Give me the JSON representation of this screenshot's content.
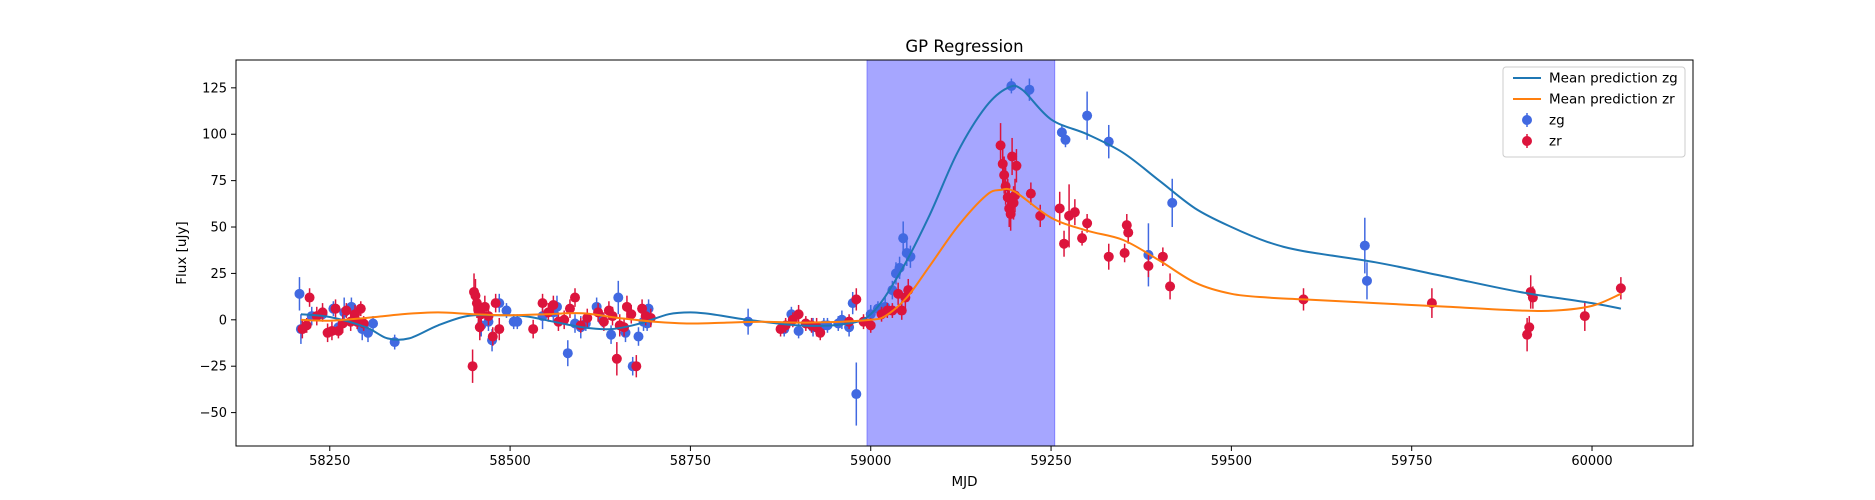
{
  "chart_data": {
    "type": "scatter",
    "title": "GP Regression",
    "xlabel": "MJD",
    "ylabel": "Flux [uJy]",
    "xlim": [
      58120,
      60140
    ],
    "ylim": [
      -68,
      140
    ],
    "xticks": [
      58250,
      58500,
      58750,
      59000,
      59250,
      59500,
      59750,
      60000
    ],
    "yticks": [
      -50,
      -25,
      0,
      25,
      50,
      75,
      100,
      125
    ],
    "grid": false,
    "legend": "top-right",
    "shaded_region": {
      "x0": 58995,
      "x1": 59255,
      "color": "#a6a6ff"
    },
    "series": [
      {
        "name": "Mean prediction zg",
        "kind": "line",
        "color": "#1f77b4",
        "points": [
          [
            58210,
            3
          ],
          [
            58250,
            1.5
          ],
          [
            58300,
            -4
          ],
          [
            58330,
            -10
          ],
          [
            58360,
            -10
          ],
          [
            58400,
            -3
          ],
          [
            58440,
            2
          ],
          [
            58480,
            2.5
          ],
          [
            58520,
            2
          ],
          [
            58560,
            -1
          ],
          [
            58600,
            -4
          ],
          [
            58640,
            -5
          ],
          [
            58680,
            -2
          ],
          [
            58720,
            3
          ],
          [
            58750,
            4
          ],
          [
            58780,
            3
          ],
          [
            58830,
            0
          ],
          [
            58900,
            -3
          ],
          [
            58960,
            -2.5
          ],
          [
            59000,
            3
          ],
          [
            59040,
            25
          ],
          [
            59080,
            55
          ],
          [
            59120,
            90
          ],
          [
            59160,
            115
          ],
          [
            59190,
            125
          ],
          [
            59210,
            124
          ],
          [
            59250,
            108
          ],
          [
            59300,
            100
          ],
          [
            59350,
            90
          ],
          [
            59400,
            75
          ],
          [
            59450,
            60
          ],
          [
            59500,
            50
          ],
          [
            59550,
            42
          ],
          [
            59600,
            37
          ],
          [
            59700,
            31
          ],
          [
            59800,
            23
          ],
          [
            59900,
            15
          ],
          [
            60000,
            9
          ],
          [
            60040,
            6
          ]
        ]
      },
      {
        "name": "Mean prediction zr",
        "kind": "line",
        "color": "#ff7f0e",
        "points": [
          [
            58210,
            0
          ],
          [
            58250,
            -0.5
          ],
          [
            58300,
            1
          ],
          [
            58350,
            3
          ],
          [
            58400,
            4
          ],
          [
            58450,
            3
          ],
          [
            58500,
            2.5
          ],
          [
            58550,
            3
          ],
          [
            58600,
            3.5
          ],
          [
            58650,
            1
          ],
          [
            58700,
            -1
          ],
          [
            58750,
            -2
          ],
          [
            58800,
            -1.5
          ],
          [
            58850,
            -1
          ],
          [
            58900,
            -1.5
          ],
          [
            58960,
            -1
          ],
          [
            59000,
            0
          ],
          [
            59020,
            2
          ],
          [
            59050,
            12
          ],
          [
            59080,
            28
          ],
          [
            59120,
            50
          ],
          [
            59160,
            67
          ],
          [
            59180,
            70
          ],
          [
            59200,
            69
          ],
          [
            59250,
            55
          ],
          [
            59300,
            48
          ],
          [
            59350,
            43
          ],
          [
            59400,
            32
          ],
          [
            59450,
            20
          ],
          [
            59500,
            14
          ],
          [
            59550,
            12
          ],
          [
            59600,
            11
          ],
          [
            59700,
            9
          ],
          [
            59800,
            7
          ],
          [
            59900,
            5
          ],
          [
            59950,
            5
          ],
          [
            60000,
            7.5
          ],
          [
            60040,
            14
          ]
        ]
      },
      {
        "name": "zg",
        "kind": "errorbar",
        "color": "#4169e1",
        "points": [
          [
            58208,
            14,
            9
          ],
          [
            58210,
            -5,
            8
          ],
          [
            58225,
            2,
            5
          ],
          [
            58240,
            3,
            4
          ],
          [
            58255,
            6,
            4
          ],
          [
            58262,
            -4,
            5
          ],
          [
            58270,
            4,
            8
          ],
          [
            58280,
            7,
            5
          ],
          [
            58288,
            -1,
            4
          ],
          [
            58295,
            -5,
            6
          ],
          [
            58303,
            -7,
            5
          ],
          [
            58310,
            -2,
            4
          ],
          [
            58340,
            -12,
            4
          ],
          [
            58460,
            -3,
            6
          ],
          [
            58470,
            -1,
            5
          ],
          [
            58475,
            -11,
            6
          ],
          [
            58485,
            9,
            5
          ],
          [
            58495,
            5,
            4
          ],
          [
            58505,
            -1,
            4
          ],
          [
            58510,
            -1,
            4
          ],
          [
            58545,
            2,
            7
          ],
          [
            58560,
            4,
            5
          ],
          [
            58565,
            7,
            6
          ],
          [
            58580,
            -18,
            7
          ],
          [
            58590,
            -2,
            5
          ],
          [
            58598,
            -4,
            6
          ],
          [
            58605,
            -2,
            4
          ],
          [
            58620,
            7,
            5
          ],
          [
            58628,
            0,
            4
          ],
          [
            58640,
            -8,
            5
          ],
          [
            58650,
            12,
            9
          ],
          [
            58660,
            -7,
            5
          ],
          [
            58670,
            -25,
            5
          ],
          [
            58678,
            -9,
            5
          ],
          [
            58685,
            -1,
            5
          ],
          [
            58690,
            -2,
            4
          ],
          [
            58692,
            6,
            5
          ],
          [
            58830,
            -1,
            7
          ],
          [
            58880,
            -5,
            4
          ],
          [
            58890,
            3,
            4
          ],
          [
            58900,
            -6,
            4
          ],
          [
            58920,
            -4,
            5
          ],
          [
            58935,
            -3,
            4
          ],
          [
            58940,
            -3,
            4
          ],
          [
            58955,
            -2,
            4
          ],
          [
            58960,
            0,
            5
          ],
          [
            58970,
            -4,
            5
          ],
          [
            58975,
            9,
            6
          ],
          [
            58980,
            -40,
            17
          ],
          [
            59000,
            3,
            5
          ],
          [
            59010,
            6,
            4
          ],
          [
            59020,
            7,
            5
          ],
          [
            59030,
            16,
            5
          ],
          [
            59035,
            25,
            6
          ],
          [
            59040,
            28,
            6
          ],
          [
            59045,
            44,
            9
          ],
          [
            59050,
            36,
            7
          ],
          [
            59055,
            34,
            6
          ],
          [
            59195,
            126,
            4
          ],
          [
            59220,
            124,
            6
          ],
          [
            59265,
            101,
            4
          ],
          [
            59270,
            97,
            4
          ],
          [
            59300,
            110,
            13
          ],
          [
            59330,
            96,
            9
          ],
          [
            59385,
            35,
            17
          ],
          [
            59418,
            63,
            13
          ],
          [
            59685,
            40,
            15
          ],
          [
            59688,
            21,
            10
          ]
        ]
      },
      {
        "name": "zr",
        "kind": "errorbar",
        "color": "#dc143c",
        "points": [
          [
            58212,
            -5,
            5
          ],
          [
            58218,
            -3,
            4
          ],
          [
            58222,
            12,
            5
          ],
          [
            58232,
            2,
            5
          ],
          [
            58240,
            4,
            5
          ],
          [
            58247,
            -7,
            5
          ],
          [
            58253,
            -6,
            5
          ],
          [
            58258,
            6,
            5
          ],
          [
            58262,
            -6,
            4
          ],
          [
            58268,
            -2,
            5
          ],
          [
            58273,
            5,
            4
          ],
          [
            58279,
            -1,
            5
          ],
          [
            58285,
            3,
            5
          ],
          [
            58288,
            -1,
            4
          ],
          [
            58293,
            6,
            4
          ],
          [
            58297,
            -2,
            4
          ],
          [
            58448,
            -25,
            9
          ],
          [
            58450,
            15,
            10
          ],
          [
            58452,
            13,
            9
          ],
          [
            58454,
            9,
            8
          ],
          [
            58456,
            5,
            7
          ],
          [
            58458,
            -4,
            7
          ],
          [
            58460,
            3,
            6
          ],
          [
            58465,
            7,
            6
          ],
          [
            58470,
            2,
            5
          ],
          [
            58476,
            -9,
            5
          ],
          [
            58480,
            9,
            5
          ],
          [
            58485,
            -5,
            6
          ],
          [
            58532,
            -5,
            5
          ],
          [
            58545,
            9,
            5
          ],
          [
            58553,
            4,
            5
          ],
          [
            58560,
            8,
            5
          ],
          [
            58567,
            -1,
            5
          ],
          [
            58575,
            0,
            5
          ],
          [
            58583,
            6,
            5
          ],
          [
            58590,
            12,
            5
          ],
          [
            58598,
            -3,
            4
          ],
          [
            58607,
            1,
            5
          ],
          [
            58622,
            4,
            5
          ],
          [
            58630,
            -1,
            5
          ],
          [
            58637,
            5,
            5
          ],
          [
            58642,
            2,
            5
          ],
          [
            58648,
            -21,
            9
          ],
          [
            58652,
            -3,
            6
          ],
          [
            58658,
            -4,
            5
          ],
          [
            58662,
            7,
            6
          ],
          [
            58668,
            3,
            5
          ],
          [
            58675,
            -25,
            6
          ],
          [
            58683,
            6,
            5
          ],
          [
            58688,
            2,
            5
          ],
          [
            58695,
            1,
            5
          ],
          [
            58875,
            -5,
            4
          ],
          [
            58882,
            -3,
            4
          ],
          [
            58892,
            0,
            4
          ],
          [
            58900,
            3,
            5
          ],
          [
            58910,
            -2,
            4
          ],
          [
            58918,
            -3,
            4
          ],
          [
            58925,
            -4,
            5
          ],
          [
            58930,
            -7,
            4
          ],
          [
            58970,
            -1,
            4
          ],
          [
            58980,
            11,
            6
          ],
          [
            58990,
            -1,
            4
          ],
          [
            59000,
            -3,
            4
          ],
          [
            59015,
            3,
            4
          ],
          [
            59023,
            5,
            4
          ],
          [
            59030,
            5,
            4
          ],
          [
            59038,
            14,
            6
          ],
          [
            59043,
            5,
            5
          ],
          [
            59048,
            12,
            6
          ],
          [
            59052,
            16,
            6
          ],
          [
            59180,
            94,
            12
          ],
          [
            59183,
            84,
            11
          ],
          [
            59185,
            78,
            10
          ],
          [
            59187,
            72,
            10
          ],
          [
            59190,
            66,
            10
          ],
          [
            59192,
            60,
            10
          ],
          [
            59194,
            57,
            9
          ],
          [
            59196,
            88,
            10
          ],
          [
            59198,
            63,
            9
          ],
          [
            59200,
            67,
            9
          ],
          [
            59202,
            83,
            9
          ],
          [
            59222,
            68,
            6
          ],
          [
            59235,
            56,
            6
          ],
          [
            59262,
            60,
            9
          ],
          [
            59268,
            41,
            7
          ],
          [
            59275,
            56,
            17
          ],
          [
            59283,
            58,
            7
          ],
          [
            59293,
            44,
            4
          ],
          [
            59300,
            52,
            5
          ],
          [
            59330,
            34,
            7
          ],
          [
            59352,
            36,
            5
          ],
          [
            59355,
            51,
            6
          ],
          [
            59357,
            47,
            6
          ],
          [
            59385,
            29,
            6
          ],
          [
            59405,
            34,
            5
          ],
          [
            59415,
            18,
            7
          ],
          [
            59600,
            11,
            6
          ],
          [
            59778,
            9,
            8
          ],
          [
            59910,
            -8,
            9
          ],
          [
            59913,
            -4,
            6
          ],
          [
            59915,
            15,
            9
          ],
          [
            59918,
            12,
            6
          ],
          [
            59990,
            2,
            8
          ],
          [
            60040,
            17,
            6
          ]
        ]
      }
    ]
  }
}
